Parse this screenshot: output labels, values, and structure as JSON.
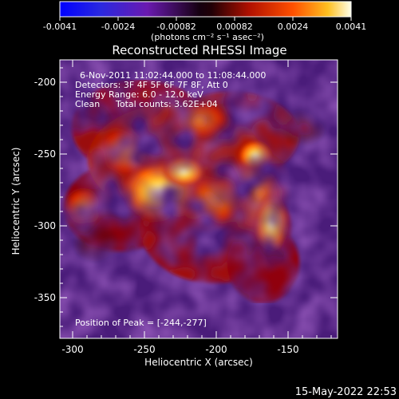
{
  "colorbar": {
    "tick_labels": [
      "-0.0041",
      "-0.0024",
      "-0.00082",
      "0.00082",
      "0.0024",
      "0.0041"
    ],
    "unit_label": "(photons cm⁻² s⁻¹ asec⁻²)"
  },
  "title": "Reconstructed RHESSI Image",
  "info": {
    "time_range": "6-Nov-2011 11:02:44.000 to 11:08:44.000",
    "detectors": "Detectors: 3F 4F 5F 6F 7F 8F, Att 0",
    "energy_range": "Energy Range: 6.0 - 12.0 keV",
    "algorithm": "Clean",
    "total_counts": "Total counts: 3.62E+04",
    "peak_position": "Position of Peak = [-244,-277]"
  },
  "axes": {
    "xlabel": "Heliocentric X (arcsec)",
    "ylabel": "Heliocentric Y (arcsec)",
    "xticks": [
      "-300",
      "-250",
      "-200",
      "-150"
    ],
    "yticks": [
      "-200",
      "-250",
      "-300",
      "-350"
    ]
  },
  "timestamp": "15-May-2022 22:53"
}
